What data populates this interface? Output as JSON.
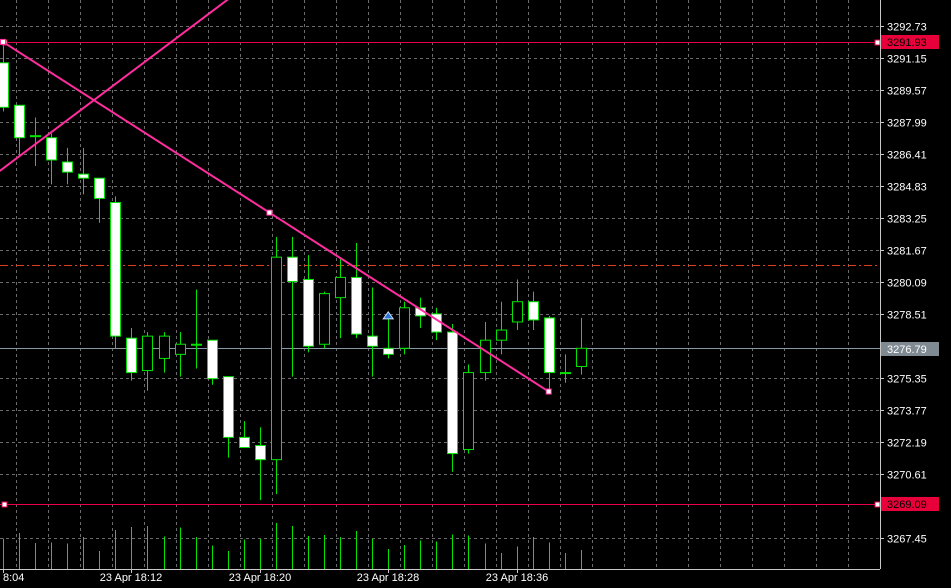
{
  "colors": {
    "background": "#000000",
    "grid": "#6b6b6b",
    "axis": "#c8c8c8",
    "axis_text": "#ffffff",
    "candle_up_fill": "#000000",
    "candle_down_fill": "#ffffff",
    "candle_outline": "#00e400",
    "volume": "#00e400",
    "hline": "#e8004a",
    "trend": "#ff2d9e",
    "bid_line": "#8a9aa4",
    "ask_line": "#e03c1c",
    "price_label_red": "#e8003a",
    "price_label_gray": "#7f8a93",
    "marker": "#2b74d6"
  },
  "chart_data": {
    "type": "candlestick",
    "symbol_timeframe": "M1",
    "ylim": [
      3265.9,
      3294.0
    ],
    "y_ticks": [
      "3292.73",
      "3291.15",
      "3289.57",
      "3287.99",
      "3286.41",
      "3284.83",
      "3283.25",
      "3281.67",
      "3280.09",
      "3278.51",
      "3275.35",
      "3273.77",
      "3272.19",
      "3270.61",
      "3267.45"
    ],
    "x_tick_labels": [
      {
        "index": 0,
        "label": "8:04"
      },
      {
        "index": 8,
        "label": "23 Apr 18:12"
      },
      {
        "index": 16,
        "label": "23 Apr 18:20"
      },
      {
        "index": 24,
        "label": "23 Apr 18:28"
      },
      {
        "index": 32,
        "label": "23 Apr 18:36"
      }
    ],
    "candles": [
      {
        "o": 3290.9,
        "h": 3291.9,
        "l": 3288.5,
        "c": 3288.7
      },
      {
        "o": 3288.8,
        "h": 3288.8,
        "l": 3286.3,
        "c": 3287.2
      },
      {
        "o": 3287.3,
        "h": 3288.2,
        "l": 3285.8,
        "c": 3287.3
      },
      {
        "o": 3287.2,
        "h": 3287.4,
        "l": 3284.9,
        "c": 3286.1
      },
      {
        "o": 3286.0,
        "h": 3286.7,
        "l": 3284.9,
        "c": 3285.5
      },
      {
        "o": 3285.4,
        "h": 3286.7,
        "l": 3284.4,
        "c": 3285.2
      },
      {
        "o": 3285.2,
        "h": 3285.2,
        "l": 3283.0,
        "c": 3284.2
      },
      {
        "o": 3284.0,
        "h": 3284.3,
        "l": 3276.8,
        "c": 3277.4
      },
      {
        "o": 3277.3,
        "h": 3277.8,
        "l": 3275.2,
        "c": 3275.6
      },
      {
        "o": 3275.7,
        "h": 3277.6,
        "l": 3274.7,
        "c": 3277.4
      },
      {
        "o": 3276.3,
        "h": 3277.6,
        "l": 3275.6,
        "c": 3277.4
      },
      {
        "o": 3276.5,
        "h": 3277.6,
        "l": 3275.4,
        "c": 3277.0
      },
      {
        "o": 3277.0,
        "h": 3279.7,
        "l": 3275.8,
        "c": 3277.0
      },
      {
        "o": 3277.2,
        "h": 3277.2,
        "l": 3275.0,
        "c": 3275.3
      },
      {
        "o": 3275.4,
        "h": 3275.4,
        "l": 3271.4,
        "c": 3272.4
      },
      {
        "o": 3272.4,
        "h": 3273.2,
        "l": 3271.9,
        "c": 3271.9
      },
      {
        "o": 3272.0,
        "h": 3272.9,
        "l": 3269.3,
        "c": 3271.3
      },
      {
        "o": 3271.3,
        "h": 3282.3,
        "l": 3269.6,
        "c": 3281.3
      },
      {
        "o": 3281.3,
        "h": 3282.3,
        "l": 3275.4,
        "c": 3280.1
      },
      {
        "o": 3280.2,
        "h": 3281.4,
        "l": 3276.6,
        "c": 3276.9
      },
      {
        "o": 3277.0,
        "h": 3279.6,
        "l": 3276.8,
        "c": 3279.5
      },
      {
        "o": 3279.3,
        "h": 3281.3,
        "l": 3277.3,
        "c": 3280.3
      },
      {
        "o": 3280.3,
        "h": 3282.0,
        "l": 3277.3,
        "c": 3277.5
      },
      {
        "o": 3277.4,
        "h": 3279.8,
        "l": 3275.4,
        "c": 3276.9
      },
      {
        "o": 3276.8,
        "h": 3278.4,
        "l": 3276.3,
        "c": 3276.5
      },
      {
        "o": 3276.8,
        "h": 3279.1,
        "l": 3276.5,
        "c": 3278.8
      },
      {
        "o": 3278.8,
        "h": 3279.3,
        "l": 3277.8,
        "c": 3278.4
      },
      {
        "o": 3278.5,
        "h": 3278.8,
        "l": 3277.2,
        "c": 3277.6
      },
      {
        "o": 3277.6,
        "h": 3278.0,
        "l": 3270.7,
        "c": 3271.6
      },
      {
        "o": 3271.8,
        "h": 3276.0,
        "l": 3271.6,
        "c": 3275.6
      },
      {
        "o": 3275.6,
        "h": 3278.1,
        "l": 3275.2,
        "c": 3277.2
      },
      {
        "o": 3277.2,
        "h": 3279.1,
        "l": 3276.5,
        "c": 3277.7
      },
      {
        "o": 3278.1,
        "h": 3280.2,
        "l": 3277.7,
        "c": 3279.1
      },
      {
        "o": 3279.1,
        "h": 3279.6,
        "l": 3277.7,
        "c": 3278.2
      },
      {
        "o": 3278.3,
        "h": 3278.4,
        "l": 3274.8,
        "c": 3275.6
      },
      {
        "o": 3275.6,
        "h": 3276.5,
        "l": 3275.1,
        "c": 3275.6
      },
      {
        "o": 3275.9,
        "h": 3278.3,
        "l": 3275.5,
        "c": 3276.8
      }
    ],
    "volume_values": [
      0.61,
      0.72,
      0.52,
      0.53,
      0.51,
      0.64,
      0.36,
      0.78,
      0.84,
      0.86,
      0.65,
      0.83,
      0.64,
      0.47,
      0.36,
      0.59,
      0.6,
      0.92,
      0.86,
      0.66,
      0.68,
      0.64,
      0.76,
      0.6,
      0.4,
      0.48,
      0.57,
      0.55,
      0.69,
      0.67,
      0.51,
      0.32,
      0.45,
      0.64,
      0.53,
      0.32,
      0.38
    ],
    "horizontal_lines": [
      {
        "price": 3291.93,
        "label": "3291.93"
      },
      {
        "price": 3269.09,
        "label": "3269.09"
      }
    ],
    "bid": {
      "price": 3276.79,
      "label": "3276.79"
    },
    "ask": {
      "price": 3280.9
    },
    "trend_lines": [
      {
        "from": {
          "index": 0,
          "price": 3291.93
        },
        "to": {
          "index": 16.6,
          "price": 3283.5
        },
        "ray": true
      },
      {
        "from": {
          "index": -0.3,
          "price": 3285.5
        },
        "to": {
          "index": 19.0,
          "price": 3297.0
        },
        "ray": false
      }
    ],
    "arrow_marker": {
      "index": 24,
      "price": 3278.4
    }
  }
}
